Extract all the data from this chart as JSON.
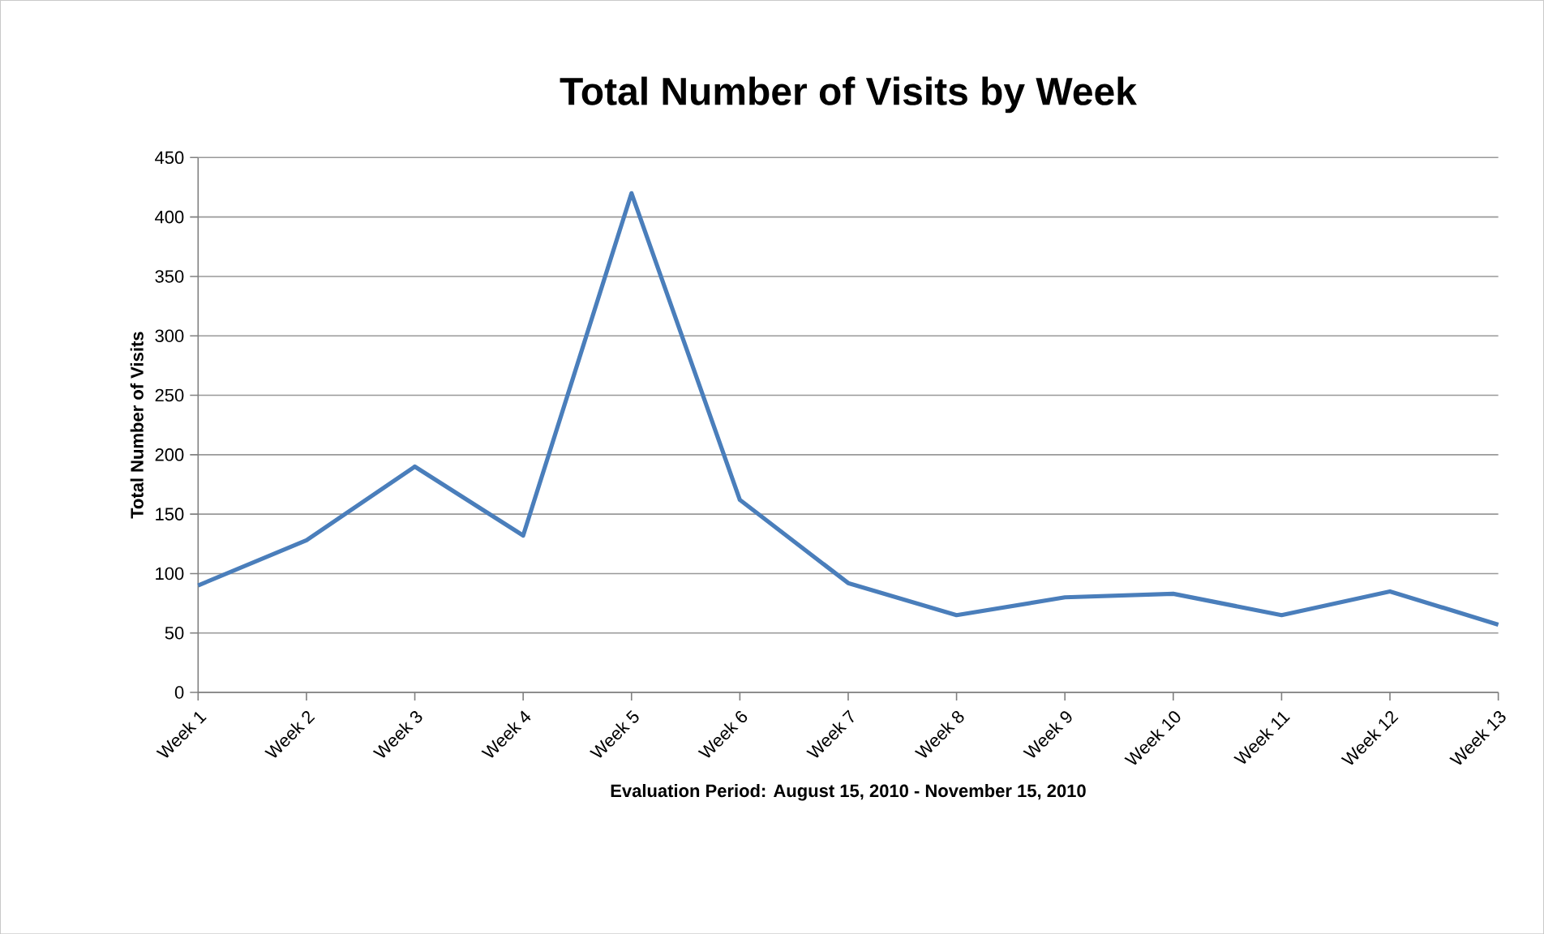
{
  "chart_data": {
    "type": "line",
    "title": "Total Number of Visits by Week",
    "xlabel": "Evaluation  Period: August 15, 2010 - November 15, 2010",
    "ylabel": "Total Number of Visits",
    "categories": [
      "Week 1",
      "Week 2",
      "Week 3",
      "Week 4",
      "Week 5",
      "Week 6",
      "Week 7",
      "Week 8",
      "Week 9",
      "Week 10",
      "Week 11",
      "Week 12",
      "Week 13"
    ],
    "series": [
      {
        "color": "#4a7ebb",
        "values": [
          90,
          128,
          190,
          132,
          420,
          162,
          92,
          65,
          80,
          83,
          65,
          85,
          57
        ]
      }
    ],
    "ylim": [
      0,
      450
    ],
    "yticks": [
      0,
      50,
      100,
      150,
      200,
      250,
      300,
      350,
      400,
      450
    ],
    "grid": "y",
    "marker": "none",
    "line_style": "solid"
  }
}
